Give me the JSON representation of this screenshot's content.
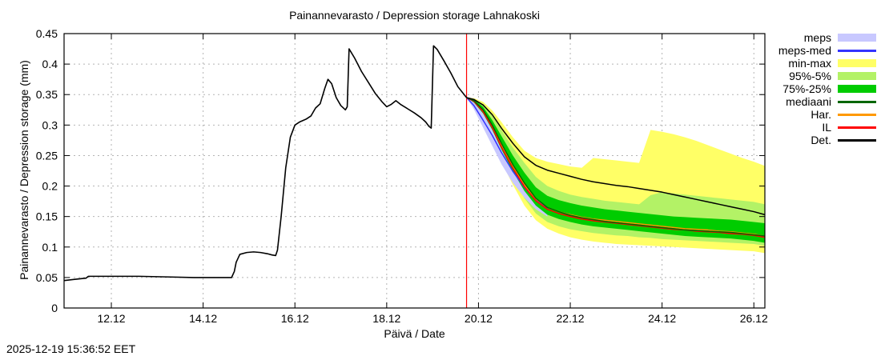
{
  "meta": {
    "timestamp": "2025-12-19 15:36:52 EET"
  },
  "chart_data": {
    "type": "line",
    "title": "Painannevarasto / Depression storage   Lahnakoski",
    "xlabel": "Päivä / Date",
    "ylabel": "Painannevarasto / Depression storage (mm)",
    "xlim": [
      10.97,
      26.24
    ],
    "ylim": [
      0,
      0.45
    ],
    "grid": true,
    "x_ticks": [
      {
        "v": 12,
        "label": "12.12"
      },
      {
        "v": 14,
        "label": "14.12"
      },
      {
        "v": 16,
        "label": "16.12"
      },
      {
        "v": 18,
        "label": "18.12"
      },
      {
        "v": 20,
        "label": "20.12"
      },
      {
        "v": 22,
        "label": "22.12"
      },
      {
        "v": 24,
        "label": "24.12"
      },
      {
        "v": 26,
        "label": "26.12"
      }
    ],
    "y_ticks": [
      {
        "v": 0,
        "label": "0"
      },
      {
        "v": 0.05,
        "label": "0.05"
      },
      {
        "v": 0.1,
        "label": "0.1"
      },
      {
        "v": 0.15,
        "label": "0.15"
      },
      {
        "v": 0.2,
        "label": "0.2"
      },
      {
        "v": 0.25,
        "label": "0.25"
      },
      {
        "v": 0.3,
        "label": "0.3"
      },
      {
        "v": 0.35,
        "label": "0.35"
      },
      {
        "v": 0.4,
        "label": "0.4"
      },
      {
        "v": 0.45,
        "label": "0.45"
      }
    ],
    "forecast_start": {
      "x": 19.74,
      "color": "#ff0000"
    },
    "history": {
      "name": "observed",
      "color": "#000000",
      "x": [
        10.97,
        11.2,
        11.45,
        11.5,
        12.0,
        12.6,
        13.2,
        13.8,
        14.3,
        14.62,
        14.68,
        14.72,
        14.8,
        14.95,
        15.1,
        15.25,
        15.4,
        15.5,
        15.58,
        15.62,
        15.7,
        15.8,
        15.9,
        16.0,
        16.1,
        16.25,
        16.35,
        16.45,
        16.55,
        16.65,
        16.72,
        16.8,
        16.9,
        17.0,
        17.1,
        17.14,
        17.18,
        17.3,
        17.45,
        17.6,
        17.75,
        17.9,
        18.0,
        18.1,
        18.2,
        18.3,
        18.45,
        18.6,
        18.75,
        18.85,
        18.92,
        18.97,
        19.02,
        19.1,
        19.25,
        19.4,
        19.55,
        19.74
      ],
      "y": [
        0.045,
        0.047,
        0.049,
        0.052,
        0.052,
        0.052,
        0.051,
        0.05,
        0.05,
        0.05,
        0.06,
        0.075,
        0.088,
        0.091,
        0.092,
        0.091,
        0.089,
        0.087,
        0.086,
        0.095,
        0.15,
        0.23,
        0.28,
        0.3,
        0.305,
        0.31,
        0.315,
        0.328,
        0.335,
        0.36,
        0.375,
        0.368,
        0.345,
        0.332,
        0.325,
        0.33,
        0.425,
        0.41,
        0.388,
        0.37,
        0.352,
        0.338,
        0.33,
        0.334,
        0.34,
        0.334,
        0.327,
        0.32,
        0.312,
        0.305,
        0.298,
        0.295,
        0.43,
        0.424,
        0.405,
        0.385,
        0.363,
        0.345
      ]
    },
    "forecast_x": [
      19.74,
      19.9,
      20.1,
      20.3,
      20.5,
      20.75,
      21.0,
      21.25,
      21.5,
      21.75,
      22.0,
      22.25,
      22.5,
      22.75,
      23.0,
      23.25,
      23.5,
      23.75,
      24.0,
      24.25,
      24.5,
      24.75,
      25.0,
      25.25,
      25.5,
      25.75,
      26.0,
      26.24
    ],
    "meps_x": [
      19.74,
      19.9,
      20.1,
      20.3,
      20.5,
      20.75,
      21.0,
      21.25,
      21.5
    ],
    "bands": [
      {
        "name": "min-max",
        "color": "#ffff66",
        "x_ref": "forecast_x",
        "upper": [
          0.345,
          0.344,
          0.338,
          0.324,
          0.305,
          0.28,
          0.258,
          0.246,
          0.24,
          0.236,
          0.232,
          0.23,
          0.246,
          0.244,
          0.242,
          0.24,
          0.238,
          0.292,
          0.289,
          0.285,
          0.28,
          0.274,
          0.267,
          0.26,
          0.253,
          0.246,
          0.24,
          0.233
        ],
        "lower": [
          0.345,
          0.331,
          0.308,
          0.276,
          0.24,
          0.202,
          0.168,
          0.144,
          0.13,
          0.122,
          0.116,
          0.112,
          0.109,
          0.107,
          0.105,
          0.104,
          0.103,
          0.102,
          0.101,
          0.1,
          0.099,
          0.098,
          0.097,
          0.096,
          0.095,
          0.094,
          0.093,
          0.09
        ]
      },
      {
        "name": "95%-5%",
        "color": "#b3f266",
        "x_ref": "forecast_x",
        "upper": [
          0.345,
          0.343,
          0.334,
          0.315,
          0.292,
          0.263,
          0.238,
          0.215,
          0.2,
          0.192,
          0.186,
          0.182,
          0.179,
          0.176,
          0.174,
          0.172,
          0.17,
          0.185,
          0.19,
          0.188,
          0.186,
          0.184,
          0.182,
          0.18,
          0.178,
          0.176,
          0.174,
          0.17
        ],
        "lower": [
          0.345,
          0.334,
          0.314,
          0.285,
          0.25,
          0.213,
          0.18,
          0.155,
          0.141,
          0.134,
          0.129,
          0.126,
          0.123,
          0.121,
          0.119,
          0.118,
          0.116,
          0.115,
          0.113,
          0.112,
          0.111,
          0.11,
          0.109,
          0.108,
          0.107,
          0.106,
          0.105,
          0.102
        ]
      },
      {
        "name": "meps",
        "color": "#c8c8ff",
        "x_ref": "meps_x",
        "upper": [
          0.345,
          0.34,
          0.322,
          0.3,
          0.274,
          0.243,
          0.215,
          0.192,
          0.176
        ],
        "lower": [
          0.345,
          0.326,
          0.296,
          0.266,
          0.236,
          0.205,
          0.181,
          0.162,
          0.15
        ]
      },
      {
        "name": "75%-25%",
        "color": "#00cc00",
        "x_ref": "forecast_x",
        "upper": [
          0.345,
          0.342,
          0.33,
          0.308,
          0.282,
          0.25,
          0.222,
          0.198,
          0.184,
          0.177,
          0.172,
          0.168,
          0.165,
          0.162,
          0.16,
          0.158,
          0.156,
          0.154,
          0.152,
          0.15,
          0.149,
          0.148,
          0.147,
          0.146,
          0.145,
          0.143,
          0.141,
          0.139
        ],
        "lower": [
          0.345,
          0.337,
          0.319,
          0.292,
          0.26,
          0.224,
          0.192,
          0.168,
          0.153,
          0.146,
          0.141,
          0.137,
          0.134,
          0.132,
          0.13,
          0.128,
          0.126,
          0.124,
          0.122,
          0.12,
          0.118,
          0.117,
          0.116,
          0.115,
          0.114,
          0.112,
          0.11,
          0.107
        ]
      }
    ],
    "lines": [
      {
        "name": "meps-med",
        "color": "#3333ff",
        "width": 1.5,
        "x_ref": "meps_x",
        "y": [
          0.345,
          0.332,
          0.308,
          0.283,
          0.255,
          0.224,
          0.198,
          0.177,
          0.163
        ]
      },
      {
        "name": "Har.",
        "color": "#ff9900",
        "width": 1.5,
        "x_ref": "forecast_x",
        "y": [
          0.345,
          0.34,
          0.324,
          0.299,
          0.268,
          0.233,
          0.202,
          0.179,
          0.165,
          0.158,
          0.153,
          0.149,
          0.146,
          0.144,
          0.142,
          0.14,
          0.138,
          0.136,
          0.134,
          0.132,
          0.13,
          0.129,
          0.128,
          0.126,
          0.125,
          0.123,
          0.121,
          0.118
        ]
      },
      {
        "name": "IL",
        "color": "#ff0000",
        "width": 1.5,
        "x_ref": "forecast_x",
        "y": [
          0.345,
          0.339,
          0.322,
          0.296,
          0.264,
          0.229,
          0.199,
          0.176,
          0.162,
          0.155,
          0.15,
          0.146,
          0.143,
          0.141,
          0.139,
          0.137,
          0.135,
          0.133,
          0.131,
          0.129,
          0.128,
          0.126,
          0.125,
          0.124,
          0.122,
          0.121,
          0.119,
          0.116
        ]
      },
      {
        "name": "mediaani",
        "color": "#006600",
        "width": 1.5,
        "x_ref": "forecast_x",
        "y": [
          0.345,
          0.34,
          0.325,
          0.3,
          0.27,
          0.235,
          0.205,
          0.18,
          0.165,
          0.158,
          0.152,
          0.148,
          0.145,
          0.142,
          0.14,
          0.138,
          0.136,
          0.134,
          0.132,
          0.13,
          0.128,
          0.127,
          0.126,
          0.125,
          0.124,
          0.122,
          0.12,
          0.118
        ]
      },
      {
        "name": "Det.",
        "color": "#000000",
        "width": 1.5,
        "x_ref": "forecast_x",
        "y": [
          0.345,
          0.342,
          0.333,
          0.317,
          0.295,
          0.27,
          0.248,
          0.234,
          0.226,
          0.221,
          0.216,
          0.211,
          0.207,
          0.204,
          0.201,
          0.199,
          0.196,
          0.193,
          0.19,
          0.186,
          0.182,
          0.178,
          0.174,
          0.17,
          0.166,
          0.162,
          0.158,
          0.153
        ]
      }
    ],
    "legend": [
      {
        "label": "meps",
        "color": "#c8c8ff",
        "type": "band"
      },
      {
        "label": "meps-med",
        "color": "#3333ff",
        "type": "line"
      },
      {
        "label": "min-max",
        "color": "#ffff66",
        "type": "band"
      },
      {
        "label": "95%-5%",
        "color": "#b3f266",
        "type": "band"
      },
      {
        "label": "75%-25%",
        "color": "#00cc00",
        "type": "band"
      },
      {
        "label": "mediaani",
        "color": "#006600",
        "type": "line"
      },
      {
        "label": "Har.",
        "color": "#ff9900",
        "type": "line"
      },
      {
        "label": "IL",
        "color": "#ff0000",
        "type": "line"
      },
      {
        "label": "Det.",
        "color": "#000000",
        "type": "line"
      }
    ],
    "grid_color": "#b4b4b4",
    "border_color": "#000000"
  }
}
